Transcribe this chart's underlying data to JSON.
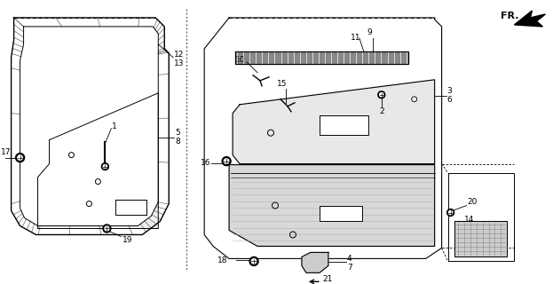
{
  "background_color": "#ffffff",
  "figsize": [
    6.23,
    3.2
  ],
  "dpi": 100,
  "line_color": "#000000",
  "weatherstrip_hatch_color": "#444444",
  "panel_fill": "#e8e8e8",
  "armrest_fill": "#d0d0d0",
  "bar_fill": "#888888"
}
